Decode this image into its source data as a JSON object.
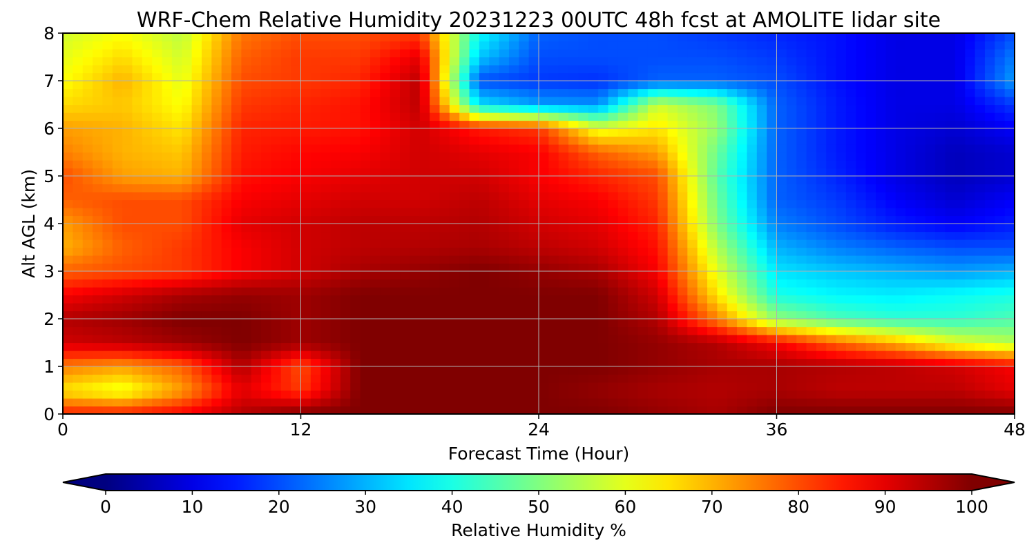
{
  "chart_data": {
    "type": "heatmap",
    "title": "WRF-Chem Relative Humidity 20231223 00UTC 48h fcst at AMOLITE lidar site",
    "xlabel": "Forecast Time (Hour)",
    "ylabel": "Alt AGL (km)",
    "xlim": [
      0,
      48
    ],
    "ylim": [
      0,
      8
    ],
    "xticks": [
      0,
      12,
      24,
      36,
      48
    ],
    "yticks": [
      0,
      1,
      2,
      3,
      4,
      5,
      6,
      7,
      8
    ],
    "grid": true,
    "colorbar": {
      "label": "Relative Humidity %",
      "range": [
        0,
        100
      ],
      "ticks": [
        0,
        10,
        20,
        30,
        40,
        50,
        60,
        70,
        80,
        90,
        100
      ],
      "colormap": "jet",
      "extend": "both"
    },
    "x": [
      0,
      3,
      6,
      9,
      12,
      15,
      18,
      21,
      24,
      27,
      30,
      33,
      36,
      39,
      42,
      45,
      48
    ],
    "y": [
      0,
      0.5,
      1,
      1.5,
      2,
      2.5,
      3,
      3.5,
      4,
      4.5,
      5,
      5.5,
      6,
      6.5,
      7,
      7.5,
      8
    ],
    "z": [
      [
        85,
        85,
        88,
        95,
        100,
        100,
        100,
        100,
        100,
        100,
        98,
        96,
        100,
        100,
        100,
        100,
        100
      ],
      [
        65,
        60,
        72,
        90,
        82,
        100,
        100,
        100,
        100,
        98,
        96,
        95,
        96,
        94,
        94,
        94,
        90
      ],
      [
        75,
        72,
        78,
        95,
        80,
        100,
        100,
        100,
        100,
        100,
        98,
        96,
        96,
        95,
        94,
        92,
        88
      ],
      [
        92,
        94,
        97,
        100,
        97,
        100,
        100,
        100,
        100,
        100,
        98,
        95,
        88,
        78,
        70,
        60,
        55
      ],
      [
        95,
        97,
        100,
        100,
        97,
        100,
        100,
        100,
        100,
        100,
        95,
        75,
        52,
        45,
        42,
        42,
        45
      ],
      [
        88,
        92,
        96,
        98,
        97,
        100,
        100,
        100,
        100,
        100,
        92,
        65,
        40,
        37,
        36,
        38,
        40
      ],
      [
        78,
        80,
        82,
        88,
        92,
        96,
        98,
        100,
        98,
        96,
        88,
        60,
        35,
        32,
        30,
        28,
        30
      ],
      [
        70,
        78,
        82,
        88,
        92,
        94,
        95,
        96,
        94,
        92,
        86,
        55,
        30,
        25,
        22,
        20,
        20
      ],
      [
        72,
        80,
        80,
        90,
        92,
        94,
        94,
        95,
        92,
        90,
        84,
        50,
        25,
        20,
        15,
        12,
        15
      ],
      [
        78,
        80,
        80,
        88,
        90,
        92,
        92,
        94,
        90,
        88,
        82,
        48,
        22,
        18,
        12,
        8,
        12
      ],
      [
        80,
        72,
        70,
        86,
        88,
        90,
        92,
        92,
        88,
        84,
        80,
        46,
        22,
        16,
        10,
        6,
        8
      ],
      [
        75,
        70,
        68,
        85,
        87,
        88,
        92,
        90,
        88,
        78,
        72,
        48,
        22,
        15,
        10,
        6,
        8
      ],
      [
        72,
        70,
        65,
        84,
        85,
        86,
        92,
        85,
        82,
        60,
        65,
        52,
        22,
        15,
        10,
        8,
        12
      ],
      [
        66,
        68,
        62,
        82,
        84,
        86,
        94,
        35,
        28,
        27,
        58,
        50,
        22,
        15,
        10,
        10,
        18
      ],
      [
        62,
        70,
        60,
        80,
        82,
        84,
        94,
        20,
        18,
        17,
        22,
        22,
        20,
        14,
        10,
        10,
        28
      ],
      [
        60,
        66,
        58,
        78,
        82,
        82,
        90,
        32,
        20,
        20,
        20,
        20,
        18,
        14,
        10,
        10,
        25
      ],
      [
        58,
        62,
        56,
        76,
        80,
        80,
        82,
        38,
        22,
        20,
        20,
        18,
        16,
        14,
        10,
        10,
        20
      ]
    ]
  }
}
